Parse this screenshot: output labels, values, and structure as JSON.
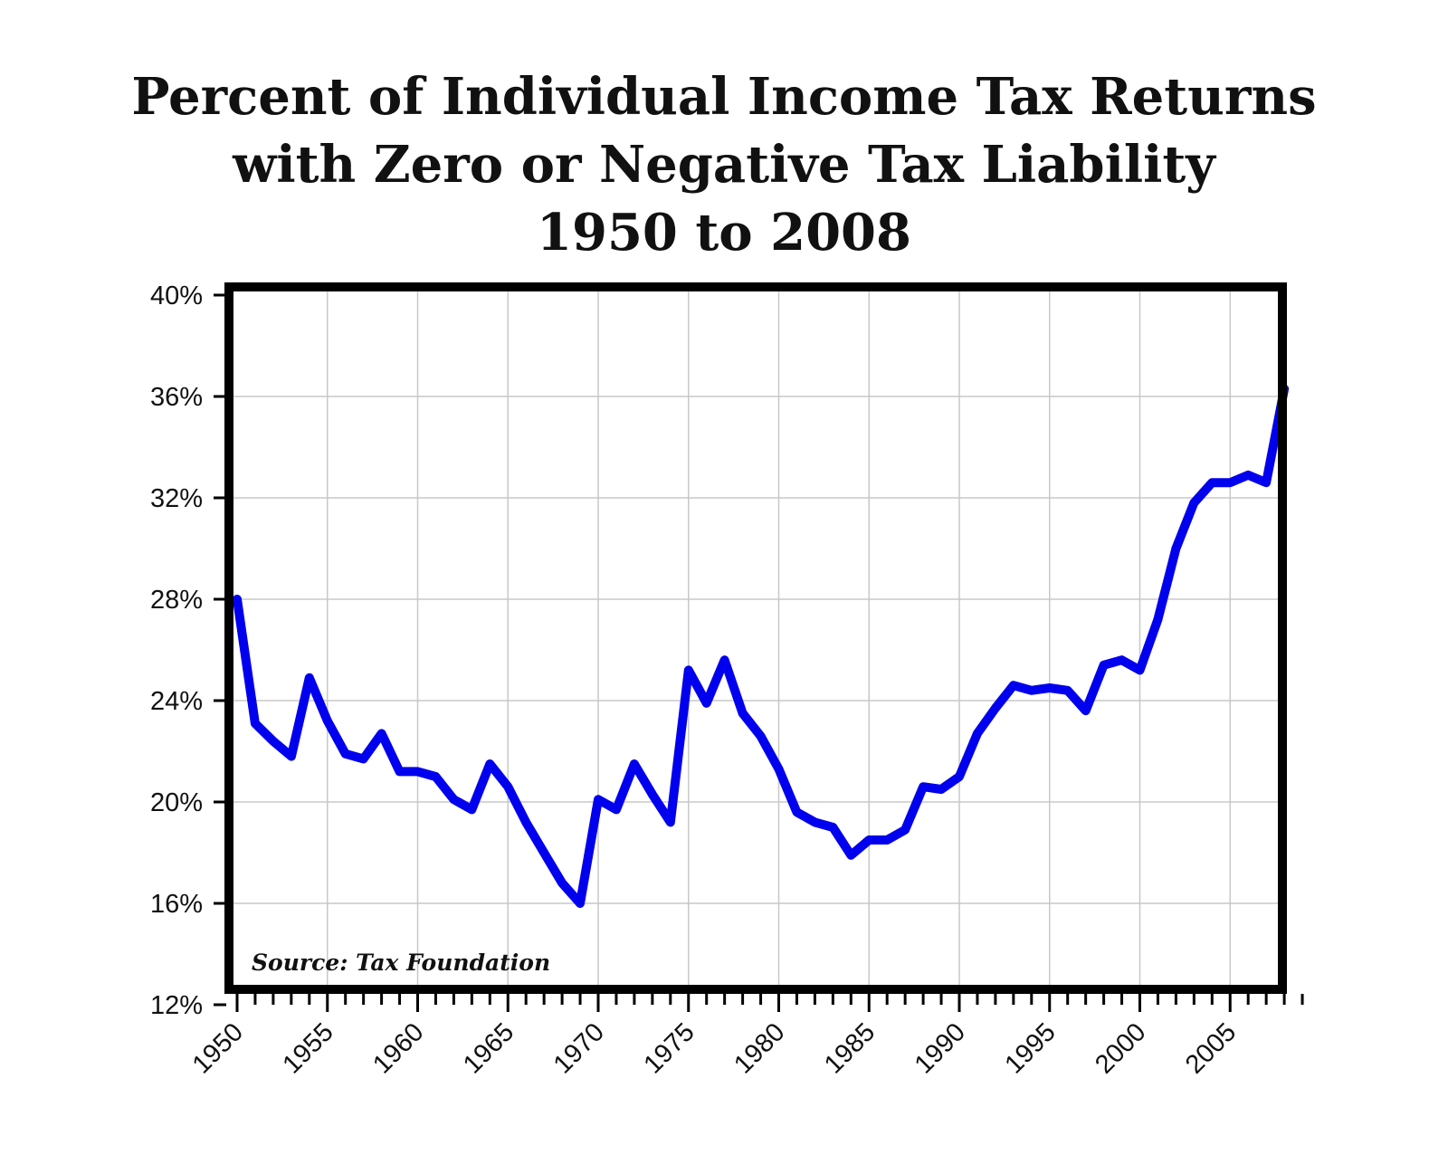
{
  "chart_data": {
    "type": "line",
    "title_lines": [
      "Percent of Individual Income Tax Returns",
      "with Zero or Negative Tax Liability",
      "1950 to 2008"
    ],
    "xlabel": "",
    "ylabel": "",
    "source": "Source: Tax Foundation",
    "x_ticks": [
      "1950",
      "1955",
      "1960",
      "1965",
      "1970",
      "1975",
      "1980",
      "1985",
      "1990",
      "1995",
      "2000",
      "2005"
    ],
    "y_ticks": [
      "12%",
      "16%",
      "20%",
      "24%",
      "28%",
      "32%",
      "36%",
      "40%"
    ],
    "xlim": [
      1950,
      2009
    ],
    "ylim": [
      12,
      40
    ],
    "grid": true,
    "colors": {
      "line": "#0000ee",
      "frame": "#000000",
      "grid": "#c8c8c8"
    },
    "series": [
      {
        "x": [
          1950,
          1951,
          1952,
          1953,
          1954,
          1955,
          1956,
          1957,
          1958,
          1959,
          1960,
          1961,
          1962,
          1963,
          1964,
          1965,
          1966,
          1967,
          1968,
          1969,
          1970,
          1971,
          1972,
          1973,
          1974,
          1975,
          1976,
          1977,
          1978,
          1979,
          1980,
          1981,
          1982,
          1983,
          1984,
          1985,
          1986,
          1987,
          1988,
          1989,
          1990,
          1991,
          1992,
          1993,
          1994,
          1995,
          1996,
          1997,
          1998,
          1999,
          2000,
          2001,
          2002,
          2003,
          2004,
          2005,
          2006,
          2007,
          2008
        ],
        "y": [
          28.0,
          23.1,
          22.4,
          21.8,
          24.9,
          23.2,
          21.9,
          21.7,
          22.7,
          21.2,
          21.2,
          21.0,
          20.1,
          19.7,
          21.5,
          20.6,
          19.2,
          18.0,
          16.8,
          16.0,
          20.1,
          19.7,
          21.5,
          20.3,
          19.2,
          25.2,
          23.9,
          25.6,
          23.5,
          22.6,
          21.3,
          19.6,
          19.2,
          19.0,
          17.9,
          18.5,
          18.5,
          18.9,
          20.6,
          20.5,
          21.0,
          22.7,
          23.7,
          24.6,
          24.4,
          24.5,
          24.4,
          23.6,
          25.4,
          25.6,
          25.2,
          27.2,
          30.0,
          31.8,
          32.6,
          32.6,
          32.9,
          32.6,
          36.3
        ]
      }
    ]
  }
}
